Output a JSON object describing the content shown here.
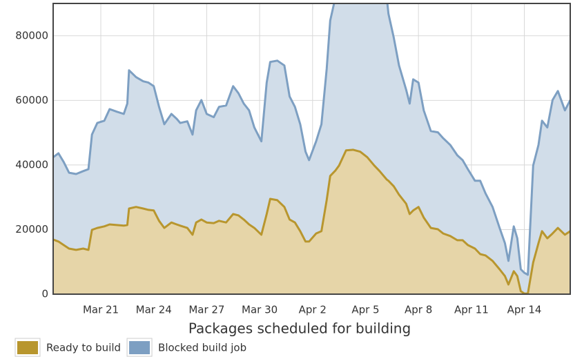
{
  "chart_data": {
    "type": "area",
    "title": "Packages scheduled for building",
    "x": [
      18.3,
      18.6,
      18.9,
      19.2,
      19.6,
      20.0,
      20.3,
      20.5,
      20.8,
      21.2,
      21.5,
      21.9,
      22.3,
      22.5,
      22.6,
      23.0,
      23.4,
      23.7,
      24.0,
      24.3,
      24.6,
      25.0,
      25.3,
      25.5,
      25.9,
      26.2,
      26.4,
      26.7,
      27.0,
      27.4,
      27.7,
      28.1,
      28.5,
      28.8,
      29.1,
      29.4,
      29.7,
      30.1,
      30.4,
      30.6,
      31.0,
      31.4,
      31.7,
      32.0,
      32.3,
      32.6,
      32.8,
      33.2,
      33.5,
      33.8,
      34.0,
      34.3,
      34.5,
      34.9,
      35.3,
      35.7,
      36.1,
      36.5,
      36.8,
      37.2,
      37.3,
      37.6,
      37.9,
      38.3,
      38.5,
      38.7,
      39.0,
      39.3,
      39.7,
      40.1,
      40.4,
      40.8,
      41.2,
      41.5,
      41.8,
      42.2,
      42.5,
      42.8,
      43.2,
      43.6,
      43.9,
      44.1,
      44.4,
      44.6,
      44.8,
      45.0,
      45.2,
      45.5,
      45.8,
      46.0,
      46.3,
      46.6,
      46.9,
      47.3,
      47.6
    ],
    "series": [
      {
        "name": "Blocked build job",
        "color": "#7d9fc2",
        "fill": "#d1dde9",
        "values": [
          42400,
          43600,
          40900,
          37600,
          37200,
          38100,
          38700,
          49400,
          53000,
          53700,
          57300,
          56500,
          55800,
          59000,
          69300,
          67200,
          65900,
          65500,
          64400,
          58000,
          52600,
          55800,
          54300,
          53000,
          53500,
          49400,
          56900,
          60100,
          55800,
          54800,
          58000,
          58400,
          64400,
          62200,
          59000,
          56900,
          51600,
          47300,
          65500,
          71900,
          72300,
          70800,
          61200,
          58000,
          52600,
          44100,
          41500,
          47300,
          52600,
          69700,
          84700,
          92000,
          92000,
          92000,
          92000,
          92000,
          92000,
          92000,
          92000,
          92000,
          86800,
          79400,
          70800,
          63300,
          59000,
          66500,
          65500,
          56900,
          50500,
          50100,
          48300,
          46200,
          43000,
          41500,
          38700,
          35100,
          35100,
          31200,
          27000,
          20500,
          15800,
          10300,
          21000,
          17300,
          7700,
          6600,
          6000,
          39800,
          46200,
          53700,
          51600,
          60100,
          62900,
          56900,
          60100
        ]
      },
      {
        "name": "Ready to build",
        "color": "#b8962e",
        "fill": "#e6d5a8",
        "values": [
          16900,
          16300,
          15200,
          14100,
          13700,
          14100,
          13700,
          19900,
          20500,
          21000,
          21600,
          21400,
          21200,
          21400,
          26500,
          27000,
          26500,
          26100,
          25900,
          22700,
          20500,
          22200,
          21600,
          21200,
          20500,
          18400,
          22200,
          23100,
          22200,
          22000,
          22700,
          22200,
          24800,
          24400,
          23100,
          21600,
          20500,
          18400,
          24800,
          29500,
          29100,
          27000,
          23100,
          22200,
          19500,
          16300,
          16300,
          18800,
          19500,
          29100,
          36600,
          38300,
          39800,
          44500,
          44700,
          44100,
          42400,
          39800,
          38100,
          35500,
          35100,
          33400,
          30800,
          28000,
          24800,
          25900,
          27000,
          23700,
          20500,
          20100,
          18800,
          18000,
          16700,
          16700,
          15200,
          14100,
          12400,
          12000,
          10300,
          7700,
          5600,
          3000,
          7100,
          5600,
          900,
          200,
          200,
          9800,
          15800,
          19500,
          17300,
          18800,
          20500,
          18400,
          19500
        ]
      }
    ],
    "legend_order": [
      1,
      0
    ],
    "xlim": [
      18.3,
      47.6
    ],
    "xticks": [
      {
        "value": 21,
        "label": "Mar 21"
      },
      {
        "value": 24,
        "label": "Mar 24"
      },
      {
        "value": 27,
        "label": "Mar 27"
      },
      {
        "value": 30,
        "label": "Mar 30"
      },
      {
        "value": 33,
        "label": "Apr 2"
      },
      {
        "value": 36,
        "label": "Apr 5"
      },
      {
        "value": 39,
        "label": "Apr 8"
      },
      {
        "value": 42,
        "label": "Apr 11"
      },
      {
        "value": 45,
        "label": "Apr 14"
      }
    ],
    "ylim": [
      0,
      90000
    ],
    "yticks": [
      0,
      20000,
      40000,
      60000,
      80000
    ],
    "grid": true
  }
}
